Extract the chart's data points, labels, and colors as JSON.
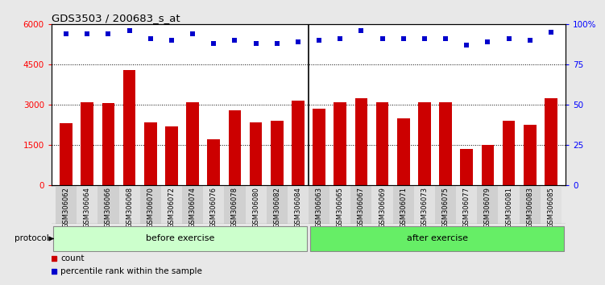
{
  "title": "GDS3503 / 200683_s_at",
  "categories": [
    "GSM306062",
    "GSM306064",
    "GSM306066",
    "GSM306068",
    "GSM306070",
    "GSM306072",
    "GSM306074",
    "GSM306076",
    "GSM306078",
    "GSM306080",
    "GSM306082",
    "GSM306084",
    "GSM306063",
    "GSM306065",
    "GSM306067",
    "GSM306069",
    "GSM306071",
    "GSM306073",
    "GSM306075",
    "GSM306077",
    "GSM306079",
    "GSM306081",
    "GSM306083",
    "GSM306085"
  ],
  "bar_values": [
    2300,
    3100,
    3050,
    4300,
    2350,
    2200,
    3100,
    1700,
    2800,
    2350,
    2400,
    3150,
    2850,
    3100,
    3250,
    3100,
    2500,
    3100,
    3100,
    1350,
    1500,
    2400,
    2250,
    3250
  ],
  "percentile_values": [
    94,
    94,
    94,
    96,
    91,
    90,
    94,
    88,
    90,
    88,
    88,
    89,
    90,
    91,
    96,
    91,
    91,
    91,
    91,
    87,
    89,
    91,
    90,
    95
  ],
  "bar_color": "#cc0000",
  "percentile_color": "#0000cc",
  "left_ylim": [
    0,
    6000
  ],
  "right_ylim": [
    0,
    100
  ],
  "left_yticks": [
    0,
    1500,
    3000,
    4500,
    6000
  ],
  "right_yticks": [
    0,
    25,
    50,
    75,
    100
  ],
  "right_yticklabels": [
    "0",
    "25",
    "50",
    "75",
    "100%"
  ],
  "grid_values": [
    1500,
    3000,
    4500
  ],
  "before_count": 12,
  "after_count": 12,
  "before_label": "before exercise",
  "after_label": "after exercise",
  "before_color": "#ccffcc",
  "after_color": "#66ee66",
  "protocol_label": "protocol",
  "legend_count_label": "count",
  "legend_percentile_label": "percentile rank within the sample",
  "bg_color": "#e8e8e8",
  "plot_bg_color": "#ffffff",
  "tick_bg_even": "#d0d0d0",
  "tick_bg_odd": "#e0e0e0"
}
